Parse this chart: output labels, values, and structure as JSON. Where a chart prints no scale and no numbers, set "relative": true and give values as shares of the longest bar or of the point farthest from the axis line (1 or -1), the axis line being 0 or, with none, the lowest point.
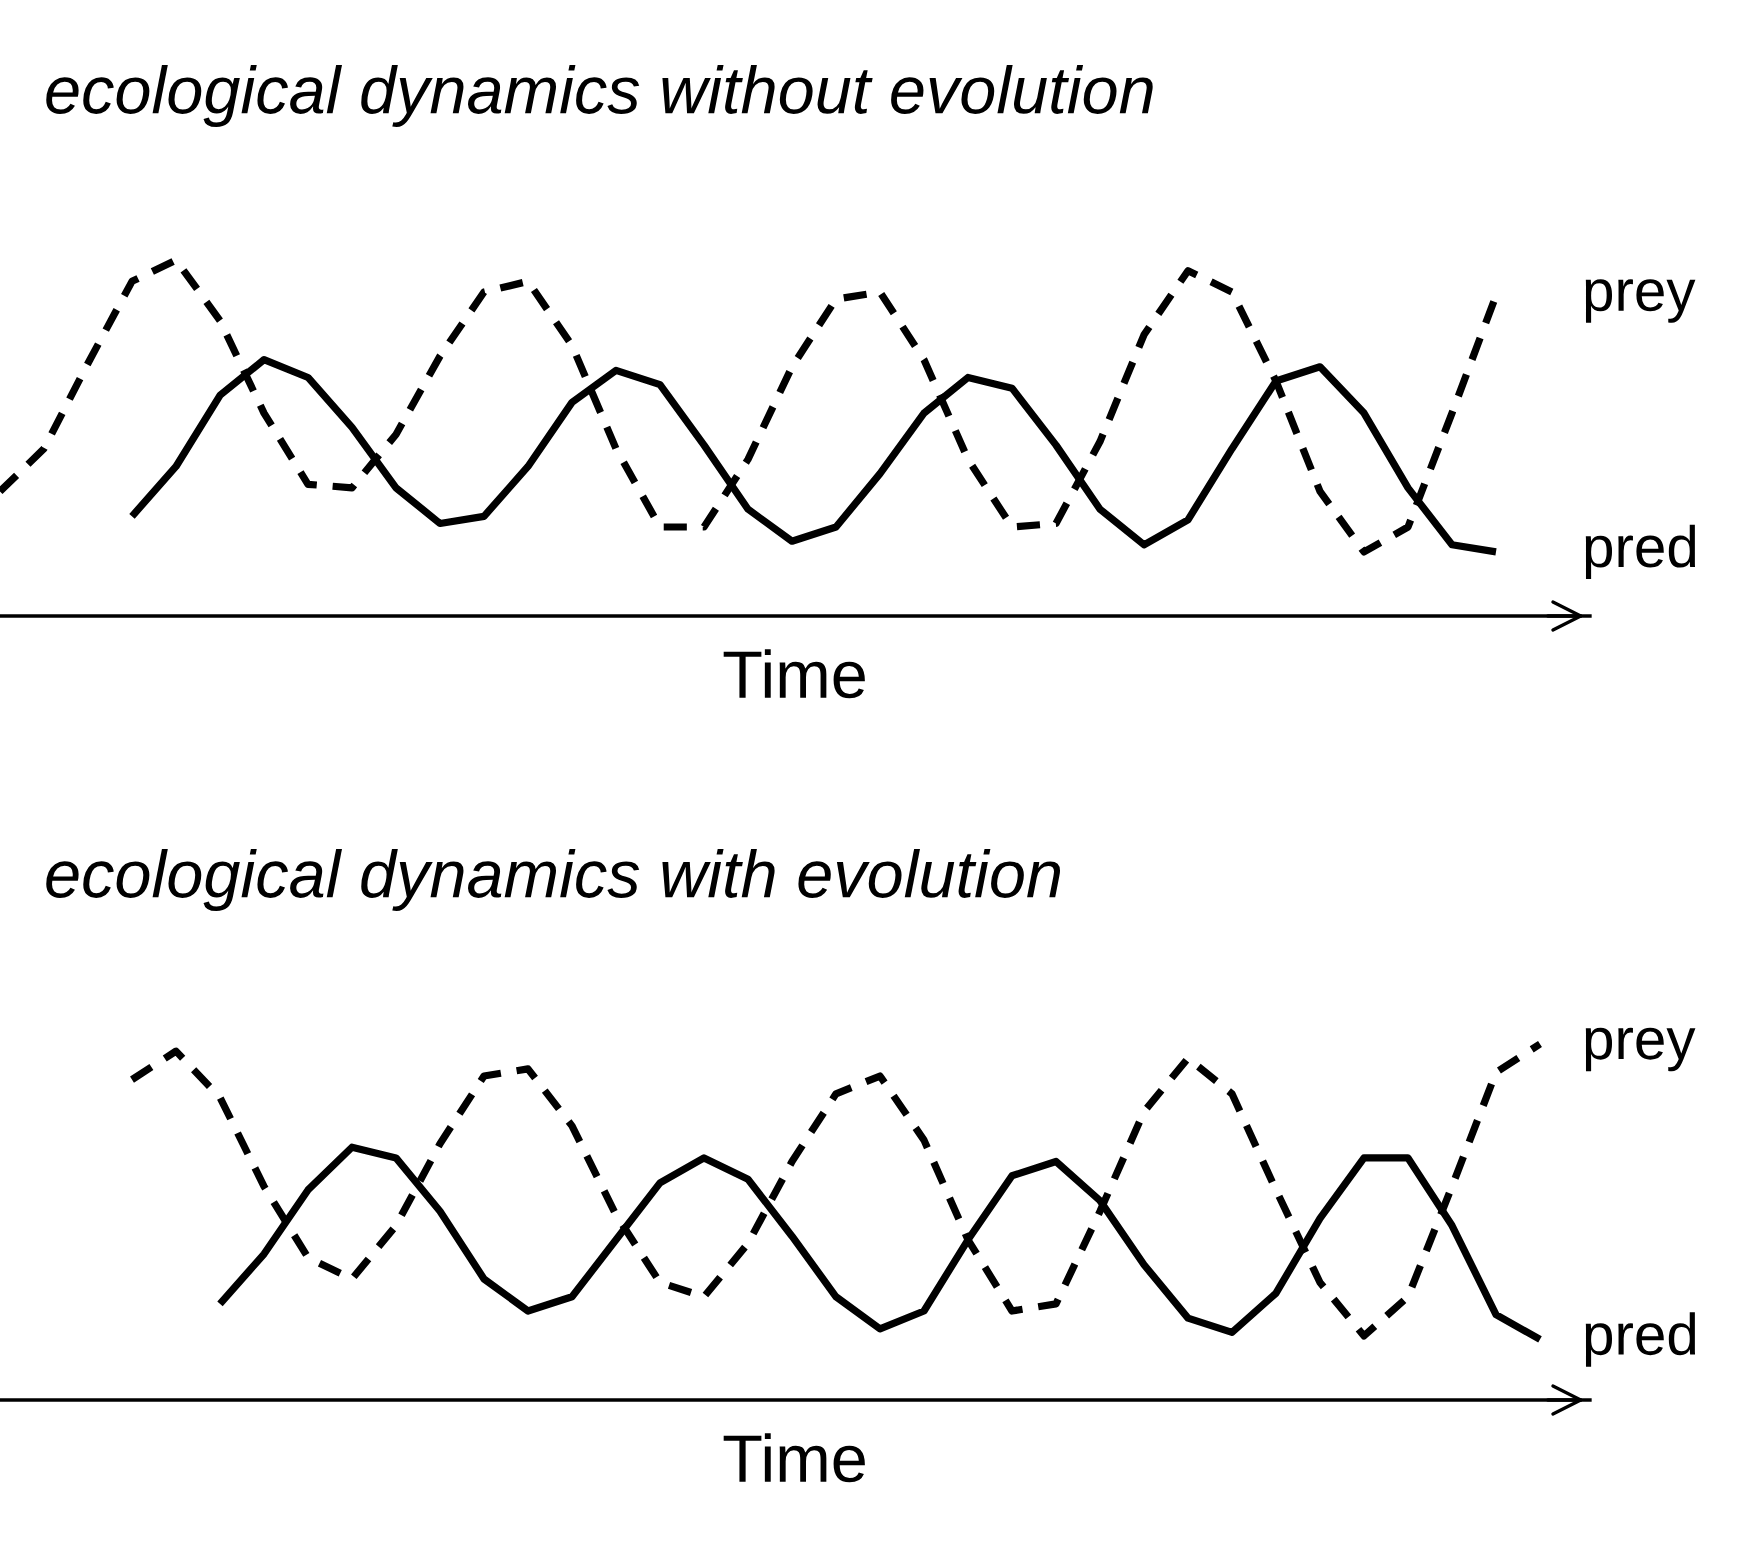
{
  "chart_data": [
    {
      "type": "line",
      "title": "ecological dynamics without evolution",
      "xlabel": "Time",
      "relative": true,
      "categories": [
        null,
        null,
        null,
        null,
        null,
        null,
        null,
        null,
        null,
        null,
        null,
        null,
        null,
        null,
        null,
        null,
        null,
        null,
        null,
        null,
        null,
        null,
        null,
        null,
        null,
        null,
        null,
        null,
        null,
        null,
        null,
        null,
        null,
        null,
        null
      ],
      "series": [
        {
          "name": "prey",
          "color": "#000000",
          "line_style": "dashed",
          "values": [
            0.35,
            0.47,
            0.71,
            0.94,
            1,
            0.83,
            0.57,
            0.37,
            0.36,
            0.51,
            0.73,
            0.91,
            0.94,
            0.76,
            0.47,
            0.25,
            0.25,
            0.44,
            0.7,
            0.89,
            0.91,
            0.72,
            0.44,
            0.25,
            0.26,
            0.49,
            0.79,
            0.97,
            0.91,
            0.66,
            0.35,
            0.18,
            0.25,
            0.57,
            0.9
          ]
        },
        {
          "name": "pred",
          "color": "#000000",
          "line_style": "solid",
          "values": [
            null,
            null,
            null,
            0.28,
            0.42,
            0.62,
            0.72,
            0.67,
            0.53,
            0.36,
            0.26,
            0.28,
            0.42,
            0.6,
            0.69,
            0.65,
            0.48,
            0.3,
            0.21,
            0.25,
            0.4,
            0.57,
            0.67,
            0.64,
            0.48,
            0.3,
            0.2,
            0.27,
            0.47,
            0.66,
            0.7,
            0.57,
            0.36,
            0.2,
            0.18
          ]
        }
      ]
    },
    {
      "type": "line",
      "title": "ecological dynamics with evolution",
      "xlabel": "Time",
      "relative": true,
      "categories": [
        null,
        null,
        null,
        null,
        null,
        null,
        null,
        null,
        null,
        null,
        null,
        null,
        null,
        null,
        null,
        null,
        null,
        null,
        null,
        null,
        null,
        null,
        null,
        null,
        null,
        null,
        null,
        null,
        null,
        null,
        null,
        null,
        null
      ],
      "series": [
        {
          "name": "prey",
          "color": "#000000",
          "line_style": "dashed",
          "values": [
            0.9,
            0.98,
            0.85,
            0.6,
            0.4,
            0.34,
            0.49,
            0.72,
            0.91,
            0.93,
            0.77,
            0.52,
            0.33,
            0.29,
            0.44,
            0.67,
            0.86,
            0.91,
            0.73,
            0.45,
            0.25,
            0.27,
            0.53,
            0.81,
            0.96,
            0.86,
            0.59,
            0.33,
            0.18,
            0.29,
            0.6,
            0.92,
            1
          ]
        },
        {
          "name": "pred",
          "color": "#000000",
          "line_style": "solid",
          "values": [
            null,
            null,
            0.27,
            0.41,
            0.59,
            0.71,
            0.68,
            0.53,
            0.34,
            0.25,
            0.29,
            0.45,
            0.61,
            0.68,
            0.62,
            0.46,
            0.29,
            0.2,
            0.25,
            0.45,
            0.63,
            0.67,
            0.56,
            0.38,
            0.23,
            0.19,
            0.3,
            0.51,
            0.68,
            0.68,
            0.49,
            0.24,
            0.17
          ]
        }
      ]
    }
  ]
}
